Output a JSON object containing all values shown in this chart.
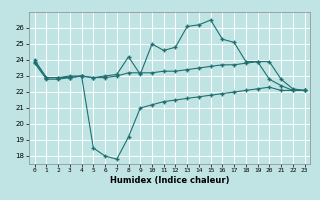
{
  "xlabel": "Humidex (Indice chaleur)",
  "background_color": "#c0e4e4",
  "grid_color": "#ffffff",
  "line_color": "#1e7070",
  "x": [
    0,
    1,
    2,
    3,
    4,
    5,
    6,
    7,
    8,
    9,
    10,
    11,
    12,
    13,
    14,
    15,
    16,
    17,
    18,
    19,
    20,
    21,
    22,
    23
  ],
  "line1": [
    24.0,
    22.9,
    22.9,
    23.0,
    23.0,
    22.9,
    23.0,
    23.1,
    24.2,
    23.1,
    25.0,
    24.6,
    24.8,
    26.1,
    26.2,
    26.5,
    25.3,
    25.1,
    23.9,
    23.9,
    22.8,
    22.4,
    22.1,
    22.1
  ],
  "line2": [
    23.9,
    22.9,
    22.9,
    22.9,
    23.0,
    22.9,
    22.9,
    23.0,
    23.2,
    23.2,
    23.2,
    23.3,
    23.3,
    23.4,
    23.5,
    23.6,
    23.7,
    23.7,
    23.8,
    23.9,
    23.9,
    22.8,
    22.2,
    22.1
  ],
  "line3": [
    23.8,
    22.8,
    22.8,
    22.9,
    23.0,
    18.5,
    18.0,
    17.8,
    19.2,
    21.0,
    21.2,
    21.4,
    21.5,
    21.6,
    21.7,
    21.8,
    21.9,
    22.0,
    22.1,
    22.2,
    22.3,
    22.1,
    22.1,
    22.1
  ],
  "ylim_min": 17.5,
  "ylim_max": 27.0,
  "yticks": [
    18,
    19,
    20,
    21,
    22,
    23,
    24,
    25,
    26
  ],
  "xlim_min": -0.5,
  "xlim_max": 23.5
}
